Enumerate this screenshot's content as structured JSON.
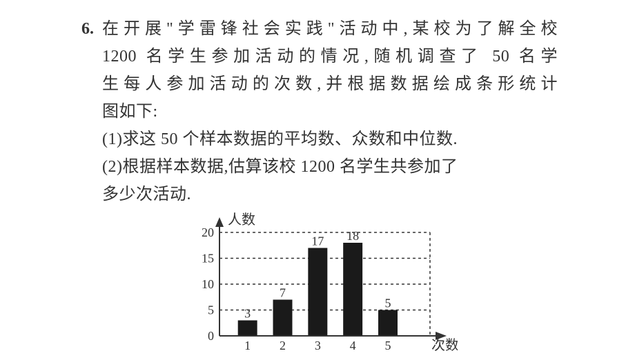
{
  "question": {
    "number": "6.",
    "stem_l1": "在开展\"学雷锋社会实践\"活动中,某校为了解全校",
    "stem_l2": "1200 名学生参加活动的情况,随机调查了 50 名学",
    "stem_l3": "生每人参加活动的次数,并根据数据绘成条形统计",
    "stem_l4": "图如下:",
    "part1": "(1)求这 50 个样本数据的平均数、众数和中位数.",
    "part2a": "(2)根据样本数据,估算该校 1200 名学生共参加了",
    "part2b": "多少次活动."
  },
  "chart": {
    "type": "bar",
    "y_axis_label": "人数",
    "x_axis_label": "次数",
    "categories": [
      "1",
      "2",
      "3",
      "4",
      "5"
    ],
    "values": [
      3,
      7,
      17,
      18,
      5
    ],
    "value_labels": [
      "3",
      "7",
      "17",
      "18",
      "5"
    ],
    "y_ticks": [
      0,
      5,
      10,
      15,
      20
    ],
    "y_max": 20,
    "bar_color": "#1a1a1a",
    "axis_color": "#333333",
    "grid_dash": "4,4",
    "background_color": "#ffffff",
    "bar_width_ratio": 0.55,
    "label_fontsize": 18
  }
}
